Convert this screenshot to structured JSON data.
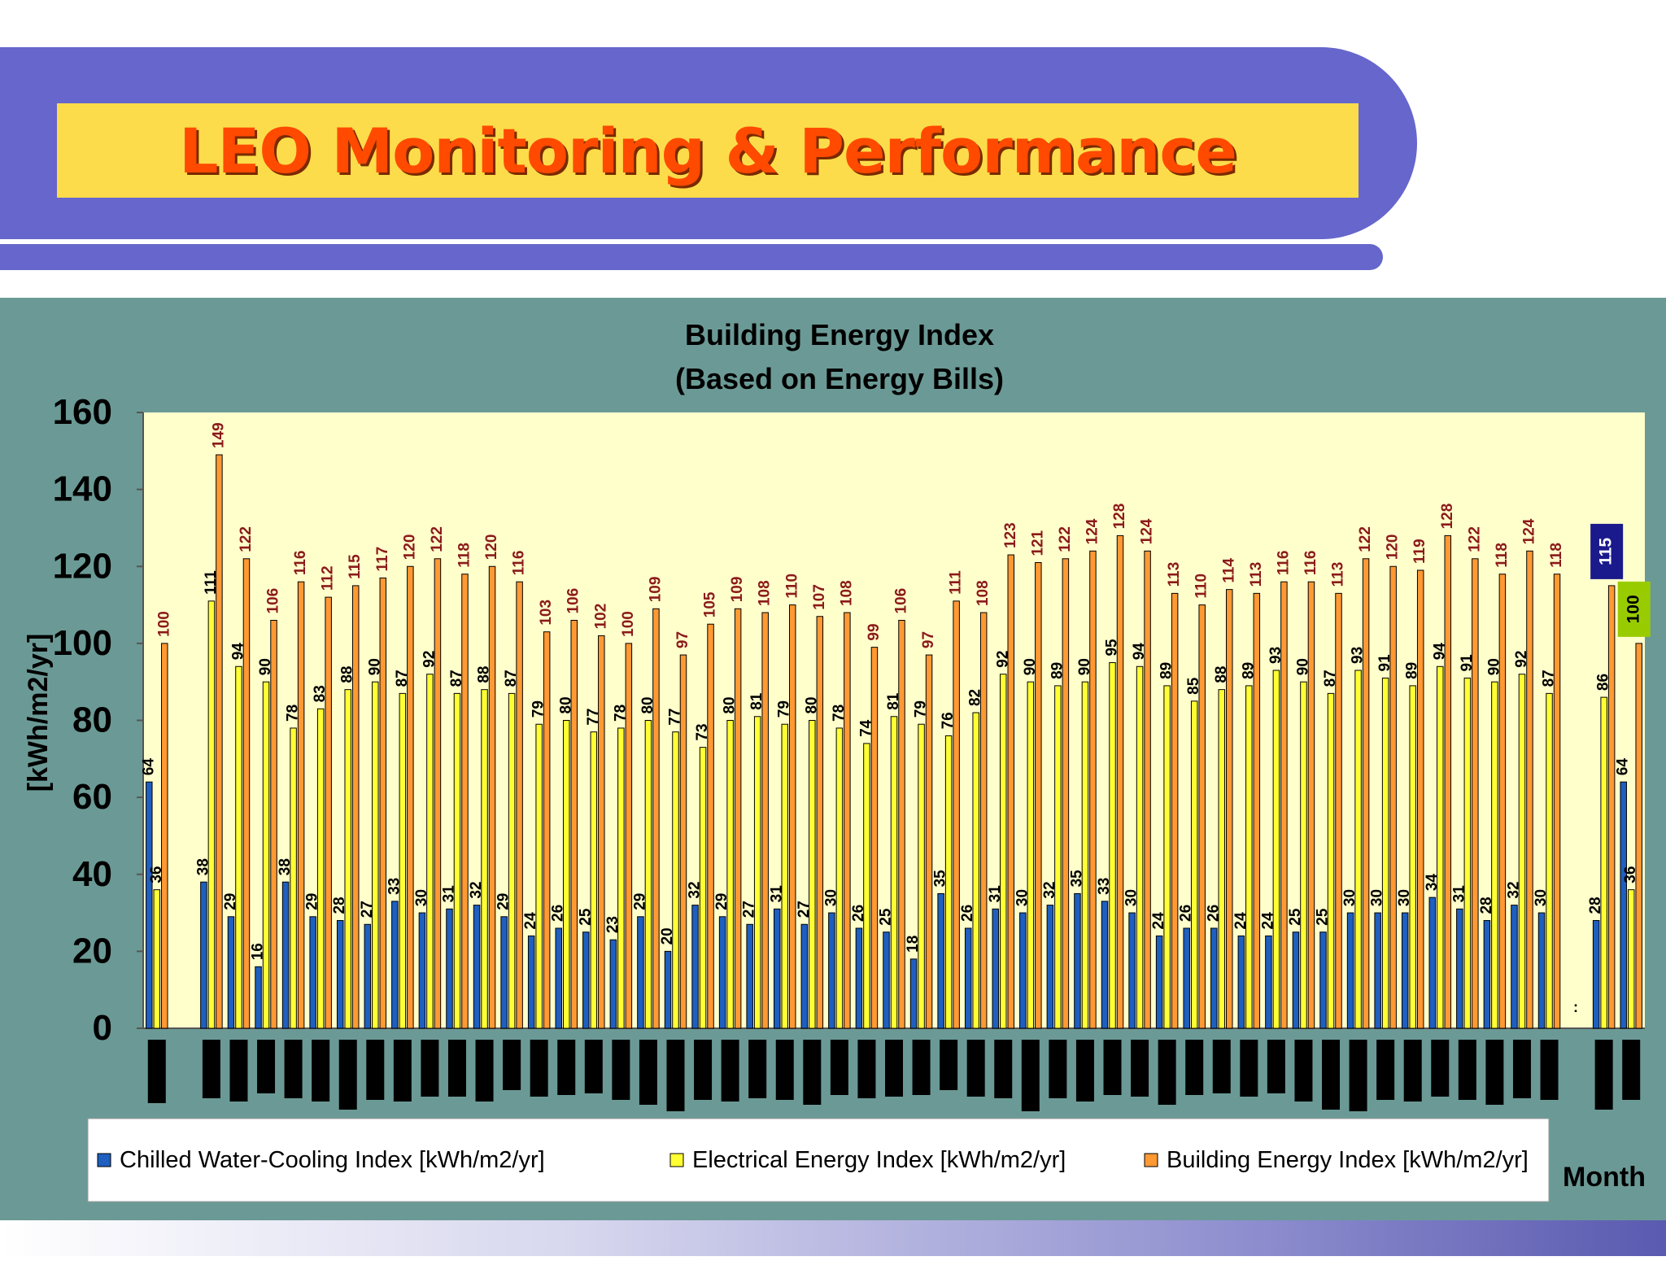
{
  "slide": {
    "title": "LEO Monitoring & Performance"
  },
  "chart_data": {
    "type": "bar",
    "title": "Building Energy Index",
    "subtitle": "(Based on Energy Bills)",
    "ylabel": "[kWh/m2/yr]",
    "xlabel": "Month",
    "ylim": [
      0,
      160
    ],
    "yticks": [
      0,
      20,
      40,
      60,
      80,
      100,
      120,
      140,
      160
    ],
    "grid": false,
    "legend_position": "bottom",
    "colors": {
      "plot_background": "#ffffcc",
      "panel_background": "#6b9a96",
      "chilled_water": "#1e5fc0",
      "electrical": "#ffff33",
      "building": "#ff9933",
      "value_label_building": "#8b1a1a",
      "badge_115": "#1a1a8c",
      "badge_100": "#99cc00"
    },
    "series": [
      {
        "name": "Chilled Water-Cooling Index [kWh/m2/yr]",
        "values": [
          64,
          null,
          38,
          29,
          16,
          38,
          29,
          28,
          27,
          33,
          30,
          31,
          32,
          29,
          24,
          26,
          25,
          23,
          29,
          20,
          32,
          29,
          27,
          31,
          27,
          30,
          26,
          25,
          18,
          35,
          26,
          31,
          30,
          32,
          35,
          33,
          30,
          24,
          26,
          26,
          24,
          24,
          25,
          25,
          30,
          30,
          30,
          34,
          31,
          28,
          32,
          30,
          null,
          28,
          64
        ]
      },
      {
        "name": "Electrical Energy Index [kWh/m2/yr]",
        "values": [
          36,
          null,
          111,
          94,
          90,
          78,
          83,
          88,
          90,
          87,
          92,
          87,
          88,
          87,
          79,
          80,
          77,
          78,
          80,
          77,
          73,
          80,
          81,
          79,
          80,
          78,
          74,
          81,
          79,
          76,
          82,
          92,
          90,
          89,
          90,
          95,
          94,
          89,
          85,
          88,
          89,
          93,
          90,
          87,
          93,
          91,
          89,
          94,
          91,
          90,
          92,
          87,
          null,
          86,
          36
        ]
      },
      {
        "name": "Building Energy Index [kWh/m2/yr]",
        "values": [
          100,
          null,
          149,
          122,
          106,
          116,
          112,
          115,
          117,
          120,
          122,
          118,
          120,
          116,
          103,
          106,
          102,
          100,
          109,
          97,
          105,
          109,
          108,
          110,
          107,
          108,
          99,
          106,
          97,
          111,
          108,
          123,
          121,
          122,
          124,
          128,
          124,
          113,
          110,
          114,
          113,
          116,
          116,
          113,
          122,
          120,
          119,
          128,
          122,
          118,
          124,
          118,
          null,
          115,
          100
        ]
      }
    ],
    "annotations": [
      ":"
    ]
  }
}
